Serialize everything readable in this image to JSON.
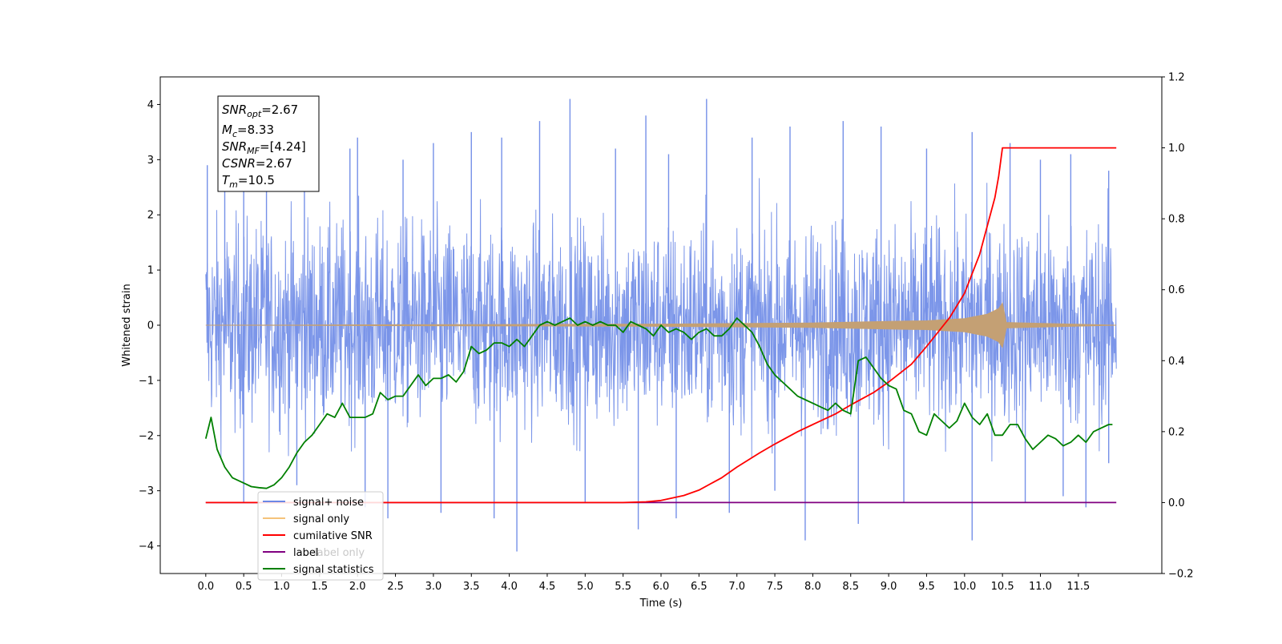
{
  "chart_data": {
    "type": "line",
    "xlabel": "Time (s)",
    "ylabel": "Whitened strain",
    "xlim": [
      -0.6,
      12.6
    ],
    "ylim": [
      -4.5,
      4.5
    ],
    "y2lim": [
      -0.2,
      1.2
    ],
    "x_ticks": [
      "0.0",
      "0.5",
      "1.0",
      "1.5",
      "2.0",
      "2.5",
      "3.0",
      "3.5",
      "4.0",
      "4.5",
      "5.0",
      "5.5",
      "6.0",
      "6.5",
      "7.0",
      "7.5",
      "8.0",
      "8.5",
      "9.0",
      "9.5",
      "10.0",
      "10.5",
      "11.0",
      "11.5"
    ],
    "y_ticks": [
      "4",
      "3",
      "2",
      "1",
      "0",
      "−1",
      "−2",
      "−3",
      "−4"
    ],
    "y2_ticks": [
      "1.2",
      "1.0",
      "0.8",
      "0.6",
      "0.4",
      "0.2",
      "0.0",
      "−0.2"
    ],
    "stats_box": {
      "line1": {
        "base": "SNR",
        "sub": "opt",
        "rest": "=2.67"
      },
      "line2": {
        "base": "M",
        "sub": "c",
        "rest": "=8.33"
      },
      "line3": {
        "base": "SNR",
        "sub": "MF",
        "rest": "=[4.24]"
      },
      "line4": {
        "base": "CSNR",
        "sub": "",
        "rest": "=2.67"
      },
      "line5": {
        "base": "T",
        "sub": "m",
        "rest": "=10.5"
      }
    },
    "legend": {
      "placement": "lower-left",
      "entries": [
        {
          "label": "signal+ noise",
          "color": "#6b87e6"
        },
        {
          "label": "signal only",
          "color": "#f5c37a"
        },
        {
          "label": "cumilative SNR",
          "color": "#ff0000"
        },
        {
          "label": "label",
          "color": "#800080"
        },
        {
          "label": "label only",
          "color": "#bbbbbb"
        },
        {
          "label": "signal statistics",
          "color": "#008000"
        }
      ]
    },
    "series": [
      {
        "name": "signal+ noise",
        "color": "#7590e8",
        "axis": "left",
        "x_range": [
          0.0,
          12.0
        ],
        "envelope_typical": [
          -2.0,
          2.0
        ],
        "spike_peaks": [
          {
            "x": 0.02,
            "y": 2.9
          },
          {
            "x": 0.25,
            "y": 3.1
          },
          {
            "x": 0.5,
            "y": 3.0
          },
          {
            "x": 0.8,
            "y": 2.9
          },
          {
            "x": 1.3,
            "y": 3.7
          },
          {
            "x": 1.9,
            "y": 3.2
          },
          {
            "x": 2.0,
            "y": 3.4
          },
          {
            "x": 2.6,
            "y": 3.0
          },
          {
            "x": 3.0,
            "y": 3.3
          },
          {
            "x": 3.5,
            "y": 3.5
          },
          {
            "x": 3.9,
            "y": 3.4
          },
          {
            "x": 4.4,
            "y": 3.7
          },
          {
            "x": 4.8,
            "y": 4.1
          },
          {
            "x": 5.4,
            "y": 3.2
          },
          {
            "x": 5.8,
            "y": 3.8
          },
          {
            "x": 6.1,
            "y": 3.1
          },
          {
            "x": 6.6,
            "y": 4.1
          },
          {
            "x": 7.2,
            "y": 3.4
          },
          {
            "x": 7.7,
            "y": 3.6
          },
          {
            "x": 8.4,
            "y": 3.7
          },
          {
            "x": 8.9,
            "y": 3.6
          },
          {
            "x": 9.5,
            "y": 3.2
          },
          {
            "x": 10.1,
            "y": 3.5
          },
          {
            "x": 10.6,
            "y": 3.3
          },
          {
            "x": 11.0,
            "y": 3.0
          },
          {
            "x": 11.4,
            "y": 3.1
          },
          {
            "x": 11.9,
            "y": 2.8
          },
          {
            "x": 0.5,
            "y": -3.2
          },
          {
            "x": 1.2,
            "y": -2.9
          },
          {
            "x": 2.1,
            "y": -3.3
          },
          {
            "x": 2.4,
            "y": -3.5
          },
          {
            "x": 3.1,
            "y": -3.4
          },
          {
            "x": 3.8,
            "y": -3.5
          },
          {
            "x": 4.1,
            "y": -4.1
          },
          {
            "x": 5.0,
            "y": -3.2
          },
          {
            "x": 5.7,
            "y": -3.7
          },
          {
            "x": 6.2,
            "y": -3.5
          },
          {
            "x": 6.9,
            "y": -3.4
          },
          {
            "x": 7.5,
            "y": -3.0
          },
          {
            "x": 7.9,
            "y": -3.9
          },
          {
            "x": 8.6,
            "y": -3.6
          },
          {
            "x": 9.2,
            "y": -3.2
          },
          {
            "x": 10.1,
            "y": -3.9
          },
          {
            "x": 10.8,
            "y": -3.2
          },
          {
            "x": 11.3,
            "y": -3.1
          },
          {
            "x": 11.6,
            "y": -3.3
          },
          {
            "x": 11.9,
            "y": -2.5
          }
        ]
      },
      {
        "name": "signal only",
        "color": "#c4a074",
        "axis": "left",
        "x_range": [
          0.0,
          12.0
        ],
        "chirp_amplitude": [
          {
            "x": 0.0,
            "y": 0.0
          },
          {
            "x": 6.0,
            "y": 0.02
          },
          {
            "x": 7.0,
            "y": 0.03
          },
          {
            "x": 8.0,
            "y": 0.04
          },
          {
            "x": 9.0,
            "y": 0.07
          },
          {
            "x": 9.5,
            "y": 0.08
          },
          {
            "x": 10.0,
            "y": 0.12
          },
          {
            "x": 10.3,
            "y": 0.2
          },
          {
            "x": 10.45,
            "y": 0.3
          },
          {
            "x": 10.5,
            "y": 0.4
          },
          {
            "x": 10.55,
            "y": 0.05
          },
          {
            "x": 12.0,
            "y": 0.0
          }
        ]
      },
      {
        "name": "cumilative SNR",
        "color": "#ff0000",
        "axis": "right",
        "x": [
          0.0,
          5.5,
          5.8,
          6.0,
          6.3,
          6.5,
          6.8,
          7.0,
          7.3,
          7.5,
          7.8,
          8.0,
          8.3,
          8.5,
          8.8,
          9.0,
          9.3,
          9.5,
          9.8,
          10.0,
          10.2,
          10.3,
          10.4,
          10.45,
          10.5,
          11.0,
          11.5,
          12.0
        ],
        "y": [
          0.0,
          0.0,
          0.002,
          0.006,
          0.02,
          0.035,
          0.07,
          0.1,
          0.14,
          0.165,
          0.2,
          0.22,
          0.25,
          0.275,
          0.31,
          0.34,
          0.39,
          0.44,
          0.52,
          0.59,
          0.7,
          0.78,
          0.86,
          0.92,
          1.0,
          1.0,
          1.0,
          1.0
        ]
      },
      {
        "name": "label",
        "color": "#800080",
        "axis": "right",
        "x": [
          0.0,
          12.0
        ],
        "y": [
          0.0,
          0.0
        ]
      },
      {
        "name": "signal statistics",
        "color": "#008000",
        "axis": "right",
        "x": [
          0.0,
          0.07,
          0.15,
          0.25,
          0.35,
          0.5,
          0.6,
          0.7,
          0.8,
          0.9,
          1.0,
          1.1,
          1.2,
          1.3,
          1.4,
          1.5,
          1.6,
          1.7,
          1.8,
          1.9,
          2.0,
          2.1,
          2.2,
          2.3,
          2.4,
          2.5,
          2.6,
          2.7,
          2.8,
          2.9,
          3.0,
          3.1,
          3.2,
          3.3,
          3.4,
          3.5,
          3.6,
          3.7,
          3.8,
          3.9,
          4.0,
          4.1,
          4.2,
          4.3,
          4.4,
          4.5,
          4.6,
          4.7,
          4.8,
          4.9,
          5.0,
          5.1,
          5.2,
          5.3,
          5.4,
          5.5,
          5.6,
          5.7,
          5.8,
          5.9,
          6.0,
          6.1,
          6.2,
          6.3,
          6.4,
          6.5,
          6.6,
          6.7,
          6.8,
          6.9,
          7.0,
          7.1,
          7.2,
          7.3,
          7.4,
          7.5,
          7.6,
          7.7,
          7.8,
          7.9,
          8.0,
          8.1,
          8.2,
          8.3,
          8.4,
          8.5,
          8.6,
          8.7,
          8.8,
          8.9,
          9.0,
          9.1,
          9.2,
          9.3,
          9.4,
          9.5,
          9.6,
          9.7,
          9.8,
          9.9,
          10.0,
          10.1,
          10.2,
          10.3,
          10.4,
          10.5,
          10.6,
          10.7,
          10.8,
          10.9,
          11.0,
          11.1,
          11.2,
          11.3,
          11.4,
          11.5,
          11.6,
          11.7,
          11.8,
          11.9,
          11.95
        ],
        "y": [
          0.18,
          0.24,
          0.15,
          0.1,
          0.07,
          0.055,
          0.045,
          0.042,
          0.04,
          0.05,
          0.07,
          0.1,
          0.14,
          0.17,
          0.19,
          0.22,
          0.25,
          0.24,
          0.28,
          0.24,
          0.24,
          0.24,
          0.25,
          0.31,
          0.29,
          0.3,
          0.3,
          0.33,
          0.36,
          0.33,
          0.35,
          0.35,
          0.36,
          0.34,
          0.37,
          0.44,
          0.42,
          0.43,
          0.45,
          0.45,
          0.44,
          0.46,
          0.44,
          0.47,
          0.5,
          0.51,
          0.5,
          0.51,
          0.52,
          0.5,
          0.51,
          0.5,
          0.51,
          0.5,
          0.5,
          0.48,
          0.51,
          0.5,
          0.49,
          0.47,
          0.5,
          0.48,
          0.49,
          0.48,
          0.46,
          0.48,
          0.49,
          0.47,
          0.47,
          0.49,
          0.52,
          0.5,
          0.48,
          0.44,
          0.39,
          0.36,
          0.34,
          0.32,
          0.3,
          0.29,
          0.28,
          0.27,
          0.26,
          0.28,
          0.26,
          0.25,
          0.4,
          0.41,
          0.38,
          0.35,
          0.33,
          0.32,
          0.26,
          0.25,
          0.2,
          0.19,
          0.25,
          0.23,
          0.21,
          0.23,
          0.28,
          0.24,
          0.22,
          0.25,
          0.19,
          0.19,
          0.22,
          0.22,
          0.18,
          0.15,
          0.17,
          0.19,
          0.18,
          0.16,
          0.17,
          0.19,
          0.17,
          0.2,
          0.21,
          0.22,
          0.22
        ]
      }
    ]
  }
}
